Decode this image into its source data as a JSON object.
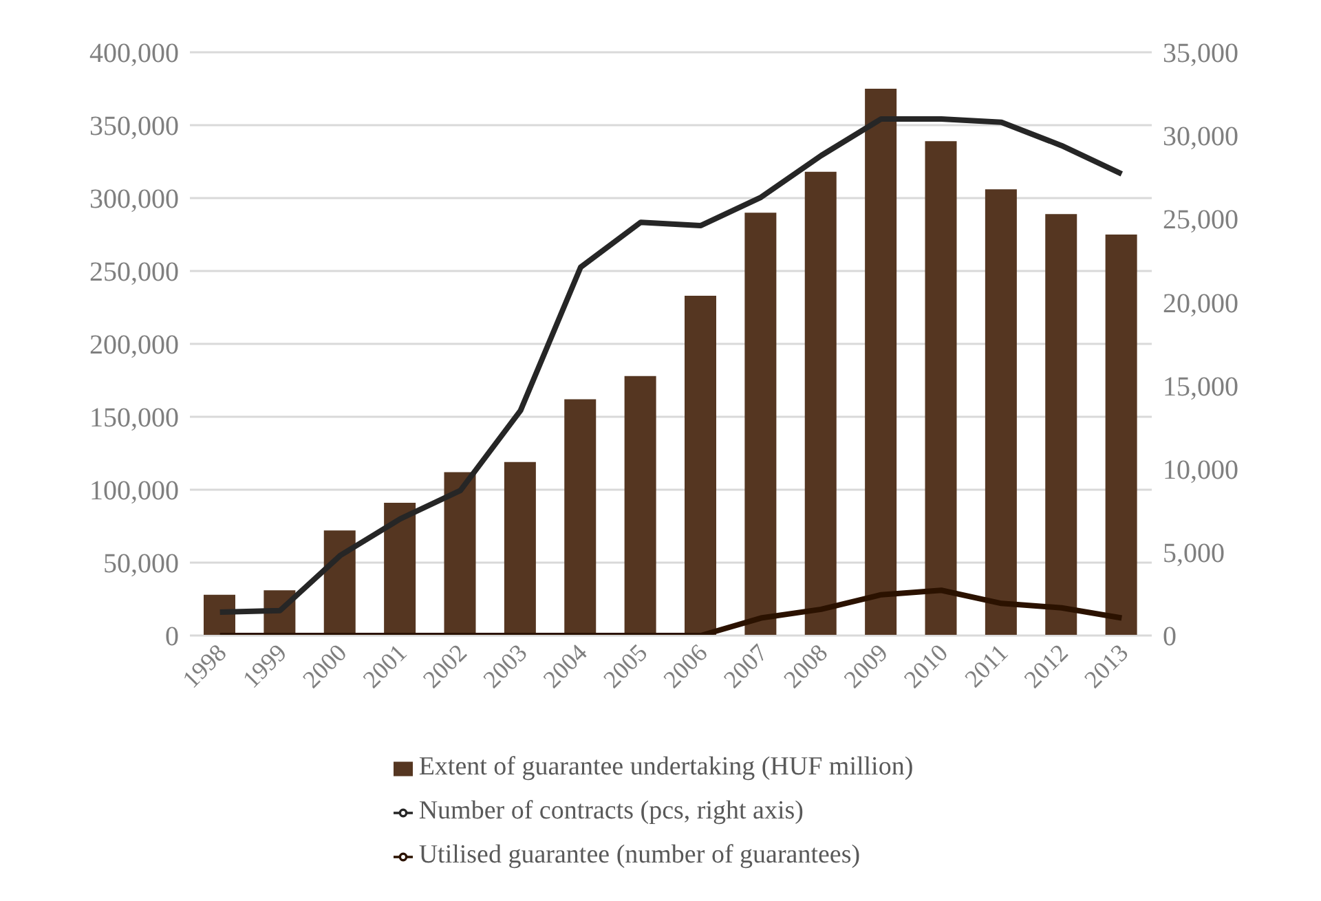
{
  "chart_data": {
    "type": "bar",
    "categories": [
      "1998",
      "1999",
      "2000",
      "2001",
      "2002",
      "2003",
      "2004",
      "2005",
      "2006",
      "2007",
      "2008",
      "2009",
      "2010",
      "2011",
      "2012",
      "2013"
    ],
    "series": [
      {
        "name": "Extent of guarantee undertaking (HUF million)",
        "color": "#553621",
        "values": [
          28000,
          31000,
          72000,
          91000,
          112000,
          119000,
          162000,
          178000,
          233000,
          290000,
          318000,
          375000,
          339000,
          306000,
          289000,
          275000
        ]
      },
      {
        "name": "Utilised guarantee (number of guarantees)",
        "type": "line",
        "color": "#2b1200",
        "values": [
          0,
          0,
          0,
          0,
          0,
          0,
          0,
          0,
          0,
          12000,
          18000,
          28000,
          31000,
          22000,
          19000,
          12000
        ]
      },
      {
        "name": "Number of contracts (pcs, right axis)",
        "type": "line",
        "axis": "y2",
        "color": "#262626",
        "values": [
          1400,
          1500,
          4800,
          7000,
          8700,
          13500,
          22100,
          24800,
          24600,
          26300,
          28800,
          31000,
          31000,
          30800,
          29400,
          27700
        ]
      }
    ],
    "ylim": [
      0,
      400000
    ],
    "yticks": [
      {
        "value": 0,
        "label": "0"
      },
      {
        "value": 50000,
        "label": "50,000"
      },
      {
        "value": 100000,
        "label": "100,000"
      },
      {
        "value": 150000,
        "label": "150,000"
      },
      {
        "value": 200000,
        "label": "200,000"
      },
      {
        "value": 250000,
        "label": "250,000"
      },
      {
        "value": 300000,
        "label": "300,000"
      },
      {
        "value": 350000,
        "label": "350,000"
      },
      {
        "value": 400000,
        "label": "400,000"
      }
    ],
    "y2lim": [
      0,
      35000
    ],
    "y2ticks": [
      {
        "value": 0,
        "label": "0"
      },
      {
        "value": 5000,
        "label": "5,000"
      },
      {
        "value": 10000,
        "label": "10,000"
      },
      {
        "value": 15000,
        "label": "15,000"
      },
      {
        "value": 20000,
        "label": "20,000"
      },
      {
        "value": 25000,
        "label": "25,000"
      },
      {
        "value": 30000,
        "label": "30,000"
      },
      {
        "value": 35000,
        "label": "35,000"
      }
    ],
    "grid": "y",
    "legend": "bottom",
    "marker": "none"
  }
}
